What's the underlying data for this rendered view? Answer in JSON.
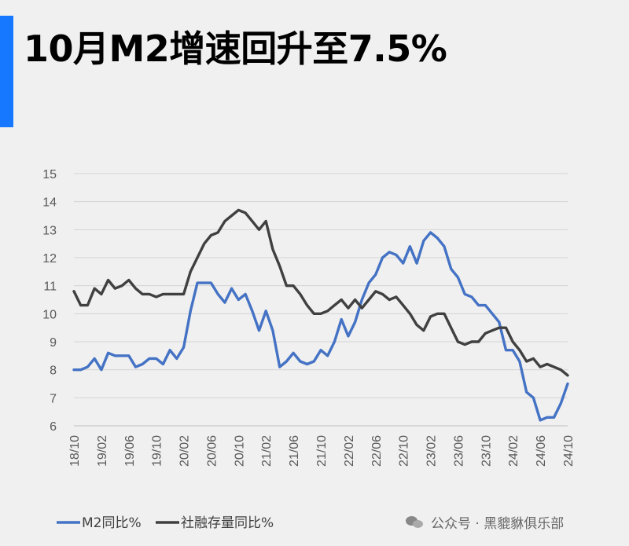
{
  "page": {
    "title": "10月M2增速回升至7.5%"
  },
  "watermark": {
    "text": "公众号 · 黑貔貅俱乐部",
    "icon": "wechat-icon"
  },
  "colors": {
    "accent": "#1677ff",
    "m2": "#4472c4",
    "tsf": "#404040",
    "grid": "#d4d4d4"
  },
  "chart_data": {
    "type": "line",
    "title": "",
    "xlabel": "",
    "ylabel": "",
    "ylim": [
      6,
      15
    ],
    "yticks": [
      6,
      7,
      8,
      9,
      10,
      11,
      12,
      13,
      14,
      15
    ],
    "grid": true,
    "legend_position": "bottom-left",
    "x": [
      "18/10",
      "18/11",
      "18/12",
      "19/01",
      "19/02",
      "19/03",
      "19/04",
      "19/05",
      "19/06",
      "19/07",
      "19/08",
      "19/09",
      "19/10",
      "19/11",
      "19/12",
      "20/01",
      "20/02",
      "20/03",
      "20/04",
      "20/05",
      "20/06",
      "20/07",
      "20/08",
      "20/09",
      "20/10",
      "20/11",
      "20/12",
      "21/01",
      "21/02",
      "21/03",
      "21/04",
      "21/05",
      "21/06",
      "21/07",
      "21/08",
      "21/09",
      "21/10",
      "21/11",
      "21/12",
      "22/01",
      "22/02",
      "22/03",
      "22/04",
      "22/05",
      "22/06",
      "22/07",
      "22/08",
      "22/09",
      "22/10",
      "22/11",
      "22/12",
      "23/01",
      "23/02",
      "23/03",
      "23/04",
      "23/05",
      "23/06",
      "23/07",
      "23/08",
      "23/09",
      "23/10",
      "23/11",
      "23/12",
      "24/01",
      "24/02",
      "24/03",
      "24/04",
      "24/05",
      "24/06",
      "24/07",
      "24/08",
      "24/09",
      "24/10"
    ],
    "x_tick_labels": [
      "18/10",
      "19/02",
      "19/06",
      "19/10",
      "20/02",
      "20/06",
      "20/10",
      "21/02",
      "21/06",
      "21/10",
      "22/02",
      "22/06",
      "22/10",
      "23/02",
      "23/06",
      "23/10",
      "24/02",
      "24/06",
      "24/10"
    ],
    "series": [
      {
        "name": "M2同比%",
        "color": "#4472c4",
        "values": [
          8.0,
          8.0,
          8.1,
          8.4,
          8.0,
          8.6,
          8.5,
          8.5,
          8.5,
          8.1,
          8.2,
          8.4,
          8.4,
          8.2,
          8.7,
          8.4,
          8.8,
          10.1,
          11.1,
          11.1,
          11.1,
          10.7,
          10.4,
          10.9,
          10.5,
          10.7,
          10.1,
          9.4,
          10.1,
          9.4,
          8.1,
          8.3,
          8.6,
          8.3,
          8.2,
          8.3,
          8.7,
          8.5,
          9.0,
          9.8,
          9.2,
          9.7,
          10.5,
          11.1,
          11.4,
          12.0,
          12.2,
          12.1,
          11.8,
          12.4,
          11.8,
          12.6,
          12.9,
          12.7,
          12.4,
          11.6,
          11.3,
          10.7,
          10.6,
          10.3,
          10.3,
          10.0,
          9.7,
          8.7,
          8.7,
          8.3,
          7.2,
          7.0,
          6.2,
          6.3,
          6.3,
          6.8,
          7.5
        ]
      },
      {
        "name": "社融存量同比%",
        "color": "#404040",
        "values": [
          10.8,
          10.3,
          10.3,
          10.9,
          10.7,
          11.2,
          10.9,
          11.0,
          11.2,
          10.9,
          10.7,
          10.7,
          10.6,
          10.7,
          10.7,
          10.7,
          10.7,
          11.5,
          12.0,
          12.5,
          12.8,
          12.9,
          13.3,
          13.5,
          13.7,
          13.6,
          13.3,
          13.0,
          13.3,
          12.3,
          11.7,
          11.0,
          11.0,
          10.7,
          10.3,
          10.0,
          10.0,
          10.1,
          10.3,
          10.5,
          10.2,
          10.5,
          10.2,
          10.5,
          10.8,
          10.7,
          10.5,
          10.6,
          10.3,
          10.0,
          9.6,
          9.4,
          9.9,
          10.0,
          10.0,
          9.5,
          9.0,
          8.9,
          9.0,
          9.0,
          9.3,
          9.4,
          9.5,
          9.5,
          9.0,
          8.7,
          8.3,
          8.4,
          8.1,
          8.2,
          8.1,
          8.0,
          7.8
        ]
      }
    ]
  }
}
